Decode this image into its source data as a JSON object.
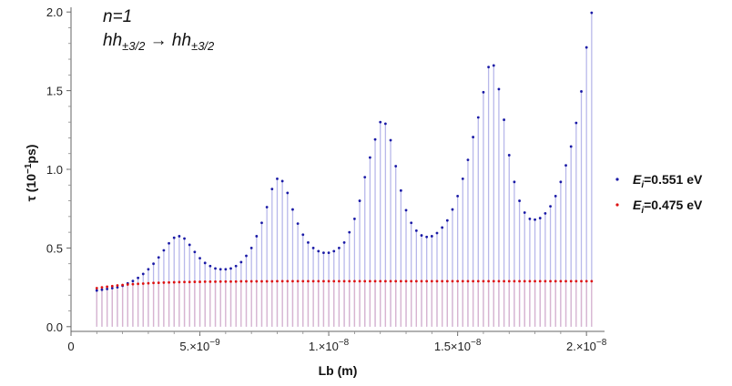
{
  "chart_data": {
    "type": "scatter",
    "title": "",
    "xlabel": "Lb (m)",
    "ylabel_base": "τ (10",
    "ylabel_exp": "−1",
    "ylabel_unit": "ps)",
    "xlim": [
      0,
      2.07e-08
    ],
    "ylim": [
      -0.03,
      2.03
    ],
    "grid": false,
    "legend_position": "right",
    "annotation": {
      "line1": "n=1",
      "line2_a": "hh",
      "line2_a_sub": "±3/2",
      "line2_arrow": " → ",
      "line2_b": "hh",
      "line2_b_sub": "±3/2"
    },
    "x_ticks": [
      {
        "value": 0,
        "mant": "0",
        "exp": ""
      },
      {
        "value": 5e-09,
        "mant": "5.×10",
        "exp": "−9"
      },
      {
        "value": 1e-08,
        "mant": "1.×10",
        "exp": "−8"
      },
      {
        "value": 1.5e-08,
        "mant": "1.5×10",
        "exp": "−8"
      },
      {
        "value": 2e-08,
        "mant": "2.×10",
        "exp": "−8"
      }
    ],
    "y_ticks": [
      {
        "value": 0.0,
        "label": "0.0"
      },
      {
        "value": 0.5,
        "label": "0.5"
      },
      {
        "value": 1.0,
        "label": "1.0"
      },
      {
        "value": 1.5,
        "label": "1.5"
      },
      {
        "value": 2.0,
        "label": "2.0"
      }
    ],
    "x_start": 1e-09,
    "x_step": 2e-10,
    "series": [
      {
        "legend_base": "E",
        "legend_sub": "i",
        "legend_value": "=0.551 eV",
        "color": "#1a1aa6",
        "stem_color": "#b8b8ea",
        "values": [
          0.23,
          0.235,
          0.24,
          0.245,
          0.25,
          0.26,
          0.275,
          0.29,
          0.31,
          0.335,
          0.365,
          0.4,
          0.44,
          0.485,
          0.53,
          0.565,
          0.575,
          0.56,
          0.52,
          0.475,
          0.435,
          0.405,
          0.385,
          0.37,
          0.365,
          0.365,
          0.37,
          0.385,
          0.41,
          0.45,
          0.5,
          0.575,
          0.66,
          0.76,
          0.875,
          0.94,
          0.925,
          0.85,
          0.745,
          0.655,
          0.585,
          0.535,
          0.5,
          0.48,
          0.47,
          0.47,
          0.48,
          0.5,
          0.535,
          0.6,
          0.685,
          0.8,
          0.95,
          1.075,
          1.19,
          1.3,
          1.29,
          1.185,
          1.02,
          0.865,
          0.74,
          0.66,
          0.61,
          0.58,
          0.57,
          0.575,
          0.595,
          0.63,
          0.675,
          0.745,
          0.83,
          0.94,
          1.06,
          1.205,
          1.33,
          1.49,
          1.65,
          1.66,
          1.51,
          1.315,
          1.09,
          0.92,
          0.8,
          0.725,
          0.685,
          0.68,
          0.69,
          0.72,
          0.765,
          0.83,
          0.92,
          1.025,
          1.145,
          1.295,
          1.495,
          1.775,
          1.995
        ]
      },
      {
        "legend_base": "E",
        "legend_sub": "i",
        "legend_value": "=0.475 eV",
        "color": "#dd1111",
        "stem_color": "#d9b4cf",
        "values": [
          0.245,
          0.25,
          0.254,
          0.258,
          0.262,
          0.265,
          0.268,
          0.27,
          0.272,
          0.274,
          0.276,
          0.278,
          0.279,
          0.28,
          0.281,
          0.282,
          0.283,
          0.284,
          0.284,
          0.285,
          0.285,
          0.286,
          0.286,
          0.286,
          0.287,
          0.287,
          0.287,
          0.287,
          0.288,
          0.288,
          0.288,
          0.288,
          0.288,
          0.288,
          0.288,
          0.289,
          0.289,
          0.289,
          0.289,
          0.289,
          0.289,
          0.289,
          0.289,
          0.289,
          0.289,
          0.289,
          0.289,
          0.289,
          0.289,
          0.289,
          0.289,
          0.289,
          0.289,
          0.289,
          0.289,
          0.289,
          0.289,
          0.289,
          0.289,
          0.289,
          0.289,
          0.289,
          0.289,
          0.289,
          0.289,
          0.289,
          0.289,
          0.289,
          0.289,
          0.289,
          0.289,
          0.289,
          0.289,
          0.289,
          0.289,
          0.289,
          0.289,
          0.289,
          0.289,
          0.289,
          0.289,
          0.289,
          0.289,
          0.289,
          0.289,
          0.289,
          0.289,
          0.289,
          0.289,
          0.289,
          0.289,
          0.289,
          0.289,
          0.289,
          0.289,
          0.289,
          0.289
        ]
      }
    ]
  }
}
